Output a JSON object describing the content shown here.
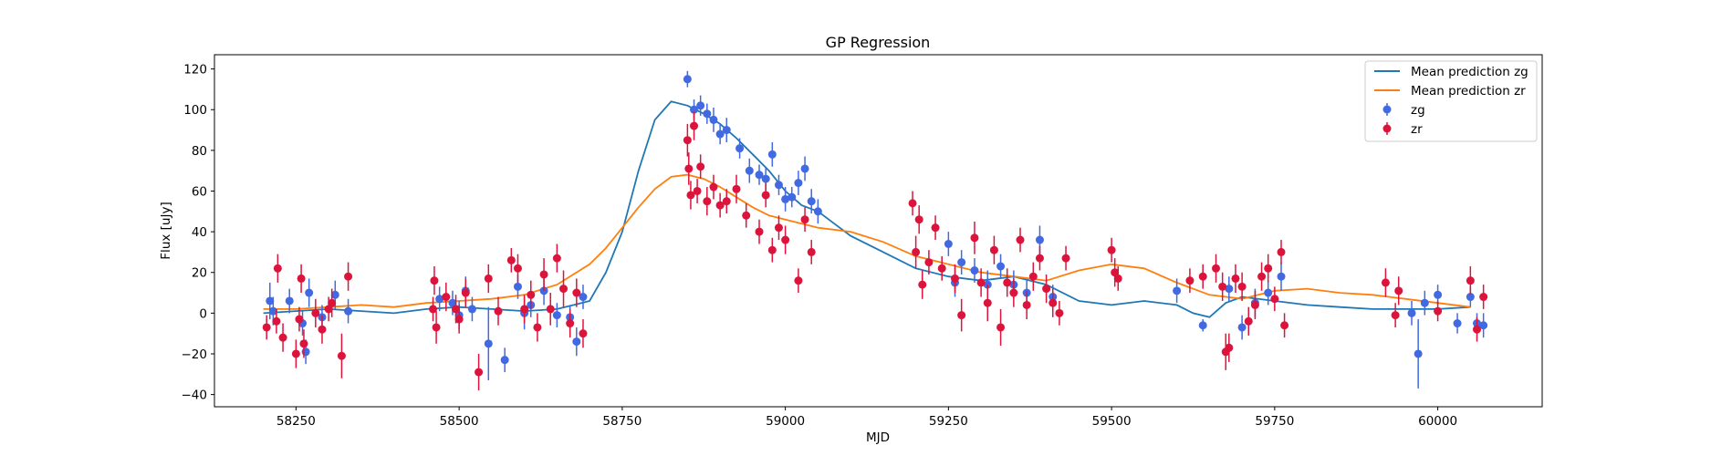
{
  "chart_data": {
    "type": "scatter",
    "title": "GP Regression",
    "xlabel": "MJD",
    "ylabel": "Flux [uJy]",
    "xlim": [
      58125,
      60160
    ],
    "ylim": [
      -46,
      127
    ],
    "xticks": [
      58250,
      58500,
      58750,
      59000,
      59250,
      59500,
      59750,
      60000
    ],
    "yticks": [
      -40,
      -20,
      0,
      20,
      40,
      60,
      80,
      100,
      120
    ],
    "grid": false,
    "legend_position": "top-right",
    "lines": [
      {
        "name": "Mean prediction zg",
        "color": "#1f77b4",
        "x": [
          58200,
          58250,
          58300,
          58350,
          58400,
          58450,
          58500,
          58550,
          58600,
          58650,
          58700,
          58725,
          58750,
          58775,
          58800,
          58825,
          58850,
          58875,
          58900,
          58925,
          58950,
          58975,
          59000,
          59025,
          59050,
          59075,
          59100,
          59150,
          59200,
          59250,
          59300,
          59350,
          59400,
          59450,
          59500,
          59550,
          59600,
          59625,
          59650,
          59675,
          59700,
          59750,
          59800,
          59850,
          59900,
          59950,
          60000,
          60050
        ],
        "y": [
          0,
          1,
          2,
          1,
          0,
          2,
          3,
          2,
          1,
          2,
          6,
          20,
          40,
          70,
          95,
          104,
          102,
          98,
          93,
          86,
          78,
          70,
          60,
          53,
          50,
          44,
          38,
          30,
          22,
          18,
          16,
          18,
          14,
          6,
          4,
          6,
          4,
          0,
          -2,
          5,
          8,
          6,
          4,
          3,
          2,
          2,
          2,
          3
        ]
      },
      {
        "name": "Mean prediction zr",
        "color": "#ff7f0e",
        "x": [
          58200,
          58250,
          58300,
          58350,
          58400,
          58450,
          58500,
          58550,
          58600,
          58650,
          58700,
          58725,
          58750,
          58775,
          58800,
          58825,
          58850,
          58875,
          58900,
          58925,
          58950,
          58975,
          59000,
          59025,
          59050,
          59100,
          59150,
          59200,
          59250,
          59300,
          59350,
          59400,
          59450,
          59500,
          59550,
          59600,
          59650,
          59700,
          59750,
          59800,
          59850,
          59900,
          59950,
          60000,
          60050
        ],
        "y": [
          2,
          2,
          3,
          4,
          3,
          5,
          6,
          7,
          9,
          14,
          24,
          32,
          42,
          52,
          61,
          67,
          68,
          66,
          62,
          57,
          52,
          48,
          46,
          44,
          42,
          40,
          35,
          28,
          24,
          20,
          18,
          16,
          21,
          24,
          22,
          15,
          9,
          7,
          11,
          12,
          10,
          9,
          7,
          5,
          3
        ]
      }
    ],
    "series": [
      {
        "name": "zg",
        "color": "#4169e1",
        "points": [
          [
            58210,
            6,
            9
          ],
          [
            58215,
            1,
            7
          ],
          [
            58240,
            6,
            6
          ],
          [
            58260,
            -5,
            6
          ],
          [
            58265,
            -19,
            6
          ],
          [
            58270,
            10,
            7
          ],
          [
            58290,
            -2,
            6
          ],
          [
            58310,
            9,
            7
          ],
          [
            58330,
            1,
            6
          ],
          [
            58470,
            7,
            6
          ],
          [
            58490,
            5,
            6
          ],
          [
            58500,
            -1,
            7
          ],
          [
            58510,
            11,
            7
          ],
          [
            58520,
            2,
            6
          ],
          [
            58545,
            -15,
            18
          ],
          [
            58570,
            -23,
            6
          ],
          [
            58590,
            13,
            6
          ],
          [
            58600,
            0,
            8
          ],
          [
            58610,
            4,
            6
          ],
          [
            58630,
            11,
            7
          ],
          [
            58650,
            -1,
            6
          ],
          [
            58670,
            -2,
            6
          ],
          [
            58680,
            -14,
            7
          ],
          [
            58690,
            8,
            6
          ],
          [
            58850,
            115,
            4
          ],
          [
            58860,
            100,
            5
          ],
          [
            58870,
            102,
            5
          ],
          [
            58880,
            98,
            5
          ],
          [
            58890,
            95,
            6
          ],
          [
            58900,
            88,
            5
          ],
          [
            58910,
            90,
            6
          ],
          [
            58930,
            81,
            5
          ],
          [
            58945,
            70,
            6
          ],
          [
            58960,
            68,
            5
          ],
          [
            58970,
            66,
            6
          ],
          [
            58980,
            78,
            6
          ],
          [
            58990,
            63,
            5
          ],
          [
            59000,
            56,
            6
          ],
          [
            59010,
            57,
            5
          ],
          [
            59020,
            64,
            6
          ],
          [
            59030,
            71,
            6
          ],
          [
            59040,
            55,
            6
          ],
          [
            59050,
            50,
            6
          ],
          [
            59250,
            34,
            6
          ],
          [
            59260,
            15,
            7
          ],
          [
            59270,
            25,
            6
          ],
          [
            59290,
            21,
            6
          ],
          [
            59310,
            14,
            7
          ],
          [
            59330,
            23,
            6
          ],
          [
            59350,
            14,
            7
          ],
          [
            59370,
            10,
            6
          ],
          [
            59390,
            36,
            7
          ],
          [
            59410,
            8,
            6
          ],
          [
            59600,
            11,
            6
          ],
          [
            59640,
            -6,
            3
          ],
          [
            59680,
            12,
            6
          ],
          [
            59700,
            -7,
            6
          ],
          [
            59720,
            5,
            7
          ],
          [
            59740,
            10,
            6
          ],
          [
            59760,
            18,
            7
          ],
          [
            59960,
            0,
            6
          ],
          [
            59970,
            -20,
            17
          ],
          [
            59980,
            5,
            6
          ],
          [
            60000,
            9,
            5
          ],
          [
            60030,
            -5,
            5
          ],
          [
            60050,
            8,
            5
          ],
          [
            60060,
            -5,
            5
          ],
          [
            60070,
            -6,
            6
          ]
        ]
      },
      {
        "name": "zr",
        "color": "#dc143c",
        "points": [
          [
            58205,
            -7,
            6
          ],
          [
            58220,
            -4,
            6
          ],
          [
            58222,
            22,
            7
          ],
          [
            58230,
            -12,
            7
          ],
          [
            58250,
            -20,
            7
          ],
          [
            58255,
            -3,
            6
          ],
          [
            58258,
            17,
            7
          ],
          [
            58262,
            -15,
            7
          ],
          [
            58280,
            0,
            7
          ],
          [
            58290,
            -8,
            7
          ],
          [
            58300,
            2,
            6
          ],
          [
            58305,
            5,
            7
          ],
          [
            58320,
            -21,
            11
          ],
          [
            58330,
            18,
            7
          ],
          [
            58460,
            2,
            6
          ],
          [
            58462,
            16,
            7
          ],
          [
            58465,
            -7,
            8
          ],
          [
            58480,
            8,
            7
          ],
          [
            58495,
            2,
            7
          ],
          [
            58500,
            -3,
            7
          ],
          [
            58510,
            10,
            7
          ],
          [
            58530,
            -29,
            9
          ],
          [
            58545,
            17,
            7
          ],
          [
            58560,
            1,
            7
          ],
          [
            58580,
            26,
            6
          ],
          [
            58590,
            22,
            7
          ],
          [
            58600,
            2,
            7
          ],
          [
            58610,
            9,
            7
          ],
          [
            58620,
            -7,
            7
          ],
          [
            58630,
            19,
            8
          ],
          [
            58640,
            2,
            8
          ],
          [
            58650,
            27,
            7
          ],
          [
            58660,
            12,
            9
          ],
          [
            58670,
            -5,
            7
          ],
          [
            58680,
            10,
            7
          ],
          [
            58690,
            -10,
            7
          ],
          [
            58850,
            85,
            8
          ],
          [
            58852,
            71,
            8
          ],
          [
            58855,
            58,
            7
          ],
          [
            58860,
            92,
            7
          ],
          [
            58865,
            60,
            6
          ],
          [
            58870,
            72,
            6
          ],
          [
            58880,
            55,
            7
          ],
          [
            58890,
            62,
            6
          ],
          [
            58900,
            53,
            6
          ],
          [
            58910,
            55,
            6
          ],
          [
            58925,
            61,
            7
          ],
          [
            58940,
            48,
            6
          ],
          [
            58960,
            40,
            6
          ],
          [
            58970,
            58,
            6
          ],
          [
            58980,
            31,
            6
          ],
          [
            58990,
            42,
            6
          ],
          [
            59000,
            36,
            7
          ],
          [
            59020,
            16,
            6
          ],
          [
            59030,
            46,
            6
          ],
          [
            59040,
            30,
            6
          ],
          [
            59195,
            54,
            6
          ],
          [
            59200,
            30,
            8
          ],
          [
            59205,
            46,
            7
          ],
          [
            59210,
            14,
            7
          ],
          [
            59220,
            25,
            6
          ],
          [
            59230,
            42,
            6
          ],
          [
            59240,
            22,
            6
          ],
          [
            59260,
            17,
            7
          ],
          [
            59270,
            -1,
            8
          ],
          [
            59290,
            37,
            8
          ],
          [
            59300,
            15,
            7
          ],
          [
            59310,
            5,
            9
          ],
          [
            59320,
            31,
            7
          ],
          [
            59330,
            -7,
            9
          ],
          [
            59340,
            15,
            7
          ],
          [
            59350,
            10,
            7
          ],
          [
            59360,
            36,
            6
          ],
          [
            59370,
            4,
            7
          ],
          [
            59380,
            18,
            7
          ],
          [
            59390,
            27,
            6
          ],
          [
            59400,
            12,
            7
          ],
          [
            59410,
            5,
            7
          ],
          [
            59420,
            0,
            6
          ],
          [
            59430,
            27,
            6
          ],
          [
            59500,
            31,
            6
          ],
          [
            59505,
            20,
            7
          ],
          [
            59510,
            17,
            6
          ],
          [
            59620,
            16,
            6
          ],
          [
            59640,
            18,
            6
          ],
          [
            59660,
            22,
            7
          ],
          [
            59670,
            13,
            7
          ],
          [
            59675,
            -19,
            9
          ],
          [
            59680,
            -17,
            7
          ],
          [
            59690,
            17,
            7
          ],
          [
            59700,
            13,
            7
          ],
          [
            59710,
            -4,
            7
          ],
          [
            59720,
            4,
            7
          ],
          [
            59730,
            18,
            7
          ],
          [
            59740,
            22,
            7
          ],
          [
            59750,
            7,
            6
          ],
          [
            59760,
            30,
            6
          ],
          [
            59765,
            -6,
            6
          ],
          [
            59920,
            15,
            7
          ],
          [
            59935,
            -1,
            6
          ],
          [
            59940,
            11,
            7
          ],
          [
            60000,
            1,
            5
          ],
          [
            60050,
            16,
            7
          ],
          [
            60060,
            -8,
            6
          ],
          [
            60070,
            8,
            6
          ]
        ]
      }
    ]
  }
}
